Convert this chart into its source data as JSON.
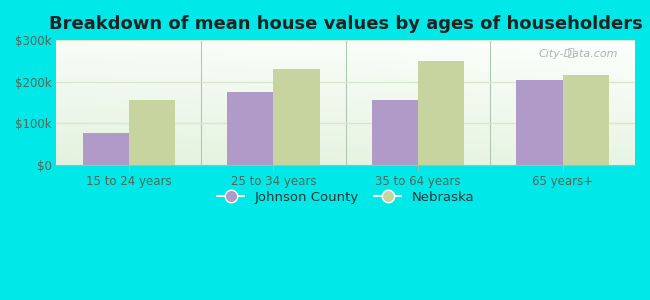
{
  "title": "Breakdown of mean house values by ages of householders",
  "categories": [
    "15 to 24 years",
    "25 to 34 years",
    "35 to 64 years",
    "65 years+"
  ],
  "johnson_county": [
    75000,
    175000,
    155000,
    205000
  ],
  "nebraska": [
    155000,
    230000,
    250000,
    215000
  ],
  "johnson_color": "#b09ac8",
  "nebraska_color": "#c8d4a0",
  "background_color": "#00e8e8",
  "ylim": [
    0,
    300000
  ],
  "yticks": [
    0,
    100000,
    200000,
    300000
  ],
  "ytick_labels": [
    "$0",
    "$100k",
    "$200k",
    "$300k"
  ],
  "bar_width": 0.32,
  "legend_labels": [
    "Johnson County",
    "Nebraska"
  ],
  "title_fontsize": 13,
  "tick_fontsize": 8.5,
  "legend_fontsize": 9.5,
  "separator_color": "#b0c8b0",
  "grid_color": "#d8e8d0",
  "plot_bg_top_right": "#f8fff8",
  "plot_bg_bottom_left": "#d8ecd4"
}
